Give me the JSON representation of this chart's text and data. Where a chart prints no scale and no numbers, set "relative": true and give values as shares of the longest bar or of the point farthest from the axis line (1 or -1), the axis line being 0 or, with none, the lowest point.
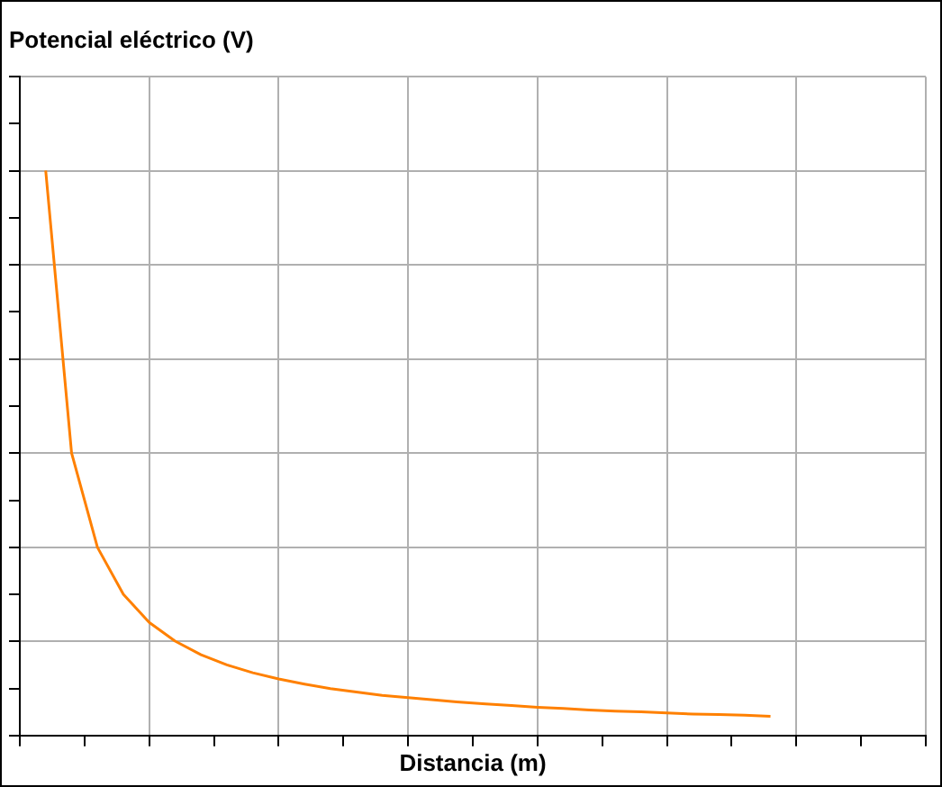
{
  "chart_data": {
    "type": "line",
    "title": "Potencial eléctrico (V)",
    "xlabel": "Distancia (m)",
    "relative": true,
    "grid": true,
    "marker": "none",
    "line_style": "solid",
    "categories": [
      null,
      null,
      null,
      null,
      null,
      null,
      null,
      null,
      null,
      null,
      null,
      null,
      null,
      null,
      null,
      null,
      null,
      null,
      null,
      null,
      null,
      null,
      null,
      null,
      null,
      null,
      null,
      null,
      null,
      null,
      null,
      null,
      null,
      null,
      null,
      null
    ],
    "series": [
      {
        "color": "#ff8000",
        "values": [
          null,
          1,
          0.5,
          0.333,
          0.25,
          0.2,
          0.167,
          0.143,
          0.125,
          0.111,
          0.1,
          0.091,
          0.083,
          0.077,
          0.071,
          0.067,
          0.063,
          0.059,
          0.056,
          0.053,
          0.05,
          0.048,
          0.045,
          0.043,
          0.042,
          0.04,
          0.038,
          0.037,
          0.036,
          0.034,
          null,
          null,
          null,
          null,
          null,
          null
        ]
      }
    ]
  }
}
